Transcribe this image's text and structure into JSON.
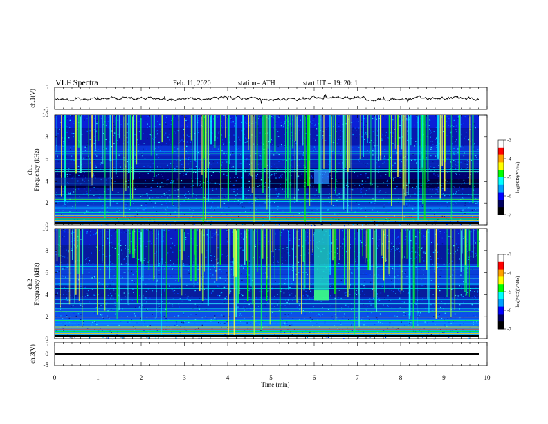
{
  "header": {
    "title": "VLF  Spectra",
    "date": "Feb. 11, 2020",
    "station": "station= ATH",
    "start": "start  UT  =    19: 20: 1"
  },
  "colors": {
    "spectrogram_scale": [
      "#000060",
      "#0000ff",
      "#00a0ff",
      "#00ffff",
      "#00ff00",
      "#ffff00",
      "#ff0000",
      "#ffffff"
    ],
    "trace": "#000000"
  },
  "chart_data": [
    {
      "id": "ch1-waveform",
      "type": "line",
      "ylabel": "ch.1(V)",
      "ylim": [
        -5,
        5
      ],
      "yticks": [
        "5",
        "-5"
      ],
      "xlim": [
        0,
        10
      ],
      "description_values": {
        "baseline": 0,
        "amplitude_range": [
          -1.5,
          1.5
        ]
      }
    },
    {
      "id": "ch1-spectrogram",
      "type": "heatmap",
      "ylabel": "ch.1\nFrequency (kHz)",
      "ylim": [
        0,
        10
      ],
      "yticks": [
        "0",
        "2",
        "4",
        "6",
        "8",
        "10"
      ],
      "xlim": [
        0,
        10
      ],
      "colorbar": {
        "label": "log(PSD)(V²/Hz)",
        "range": [
          -7,
          -3
        ],
        "ticks": [
          "-3",
          "-4",
          "-5",
          "-6",
          "-7"
        ]
      },
      "features": {
        "burst_time_min": [
          6.0,
          6.35
        ],
        "burst_freq_khz": [
          3.8,
          5.0
        ],
        "level_shift_time_min": 1.3
      }
    },
    {
      "id": "ch2-spectrogram",
      "type": "heatmap",
      "ylabel": "ch.2\nFrequency (kHz)",
      "ylim": [
        0,
        10
      ],
      "yticks": [
        "0",
        "2",
        "4",
        "6",
        "8",
        "10"
      ],
      "xlim": [
        0,
        10
      ],
      "colorbar": {
        "label": "log(PSD)(V²/Hz)",
        "range": [
          -7,
          -3
        ],
        "ticks": [
          "-3",
          "-4",
          "-5",
          "-6",
          "-7"
        ]
      },
      "features": {
        "burst_time_min": [
          6.0,
          6.35
        ],
        "burst_freq_khz": [
          3.5,
          10.0
        ]
      }
    },
    {
      "id": "ch3-waveform",
      "type": "line",
      "ylabel": "ch.3(V)",
      "ylim": [
        -5,
        5
      ],
      "yticks": [
        "5",
        "0",
        "-5"
      ],
      "xlim": [
        0,
        10
      ],
      "description_values": {
        "constant_value": 0
      }
    }
  ],
  "xaxis": {
    "label": "Time  (min)",
    "ticks": [
      "0",
      "1",
      "2",
      "3",
      "4",
      "5",
      "6",
      "7",
      "8",
      "9",
      "10"
    ]
  }
}
